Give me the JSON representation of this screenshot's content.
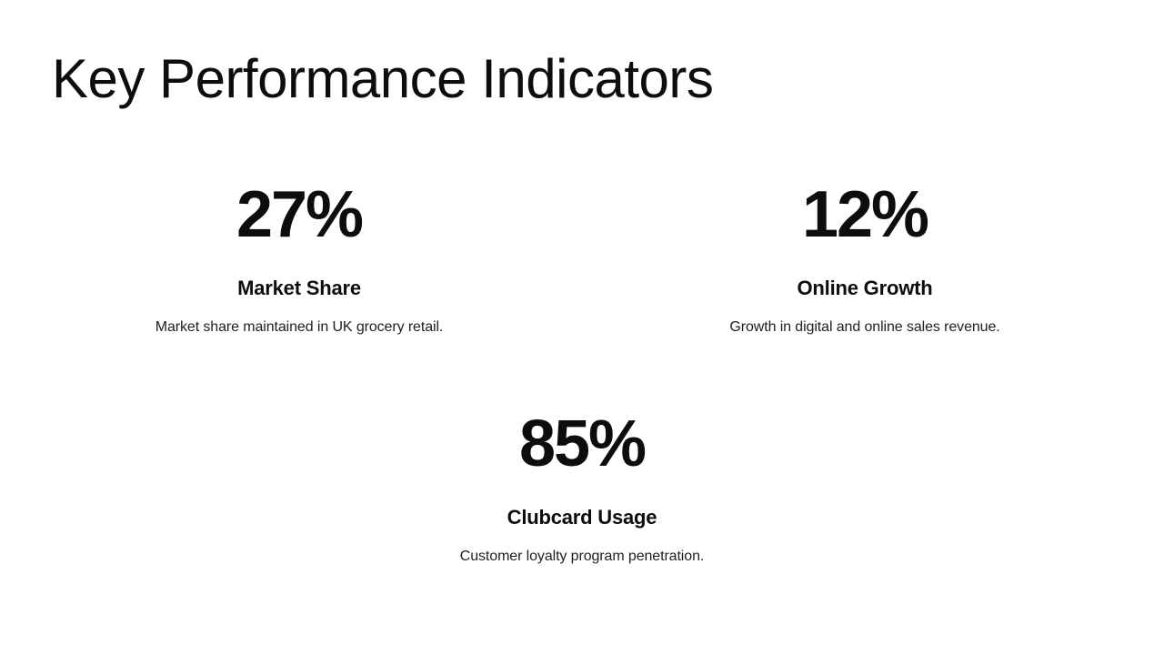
{
  "slide": {
    "title": "Key Performance Indicators",
    "background_color": "#ffffff",
    "text_color": "#0d0d0d",
    "kpis": [
      {
        "value": "27%",
        "label": "Market Share",
        "description": "Market share maintained in UK grocery retail."
      },
      {
        "value": "12%",
        "label": "Online Growth",
        "description": "Growth in digital and online sales revenue."
      },
      {
        "value": "85%",
        "label": "Clubcard Usage",
        "description": "Customer loyalty program penetration."
      }
    ]
  }
}
